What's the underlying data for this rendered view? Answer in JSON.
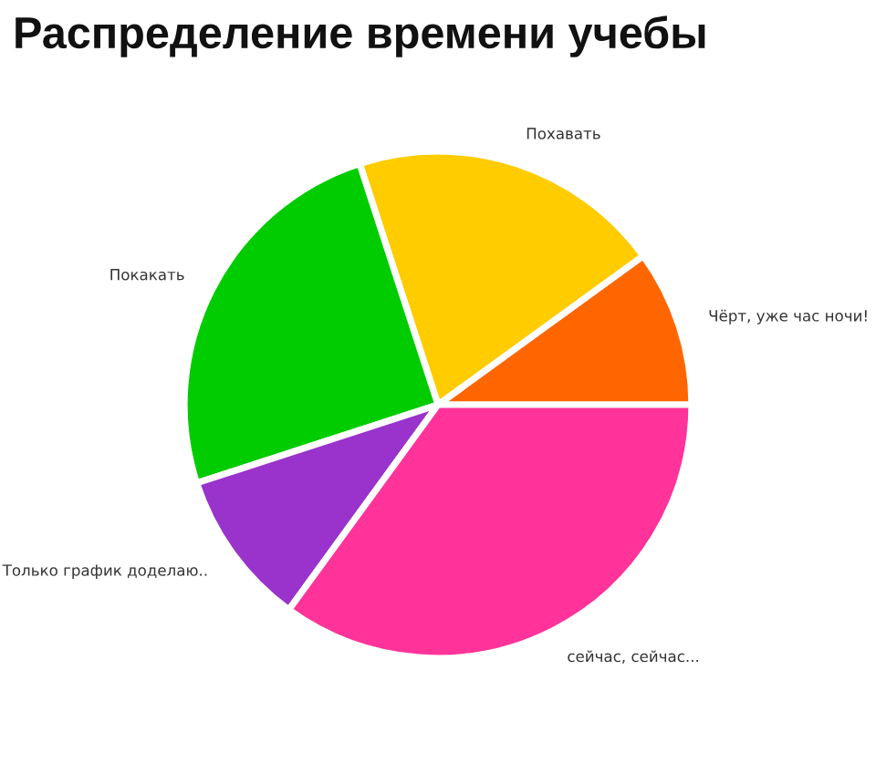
{
  "chart_data": {
    "type": "pie",
    "title": "Распределение времени учебы",
    "categories": [
      "Чёрт, уже час ночи!",
      "Похавать",
      "Покакать",
      "Только график доделаю..",
      "сейчас, сейчас..."
    ],
    "values": [
      10,
      20,
      25,
      10,
      35
    ],
    "colors": [
      "#ff6600",
      "#ffcc00",
      "#00cc00",
      "#9933cc",
      "#ff3399"
    ]
  }
}
